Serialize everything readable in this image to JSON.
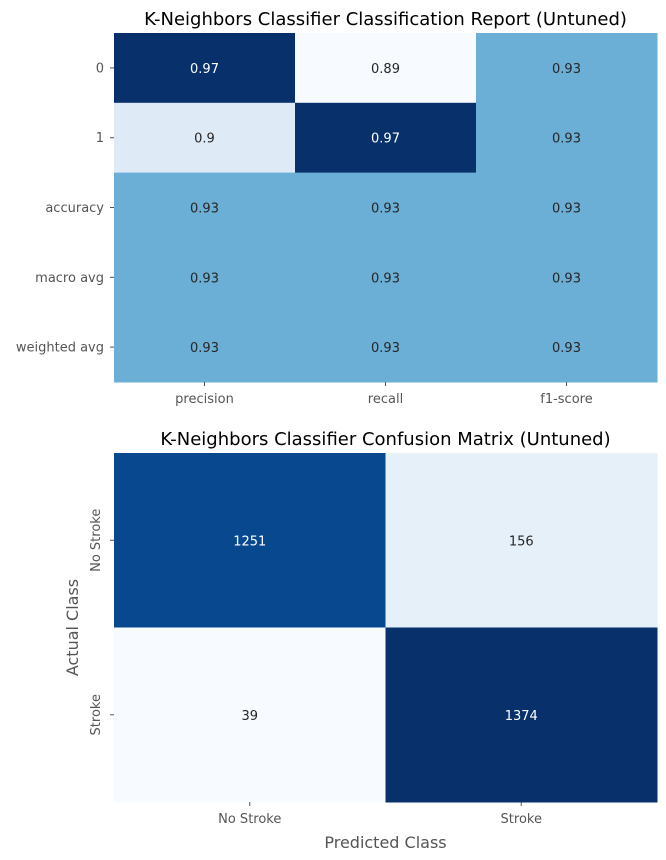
{
  "chart_data": [
    {
      "type": "heatmap",
      "title": "K-Neighbors Classifier Classification Report (Untuned)",
      "xlabel": "",
      "ylabel": "",
      "x_categories": [
        "precision",
        "recall",
        "f1-score"
      ],
      "y_categories": [
        "0",
        "1",
        "accuracy",
        "macro avg",
        "weighted avg"
      ],
      "values": [
        [
          0.97,
          0.89,
          0.93
        ],
        [
          0.9,
          0.97,
          0.93
        ],
        [
          0.93,
          0.93,
          0.93
        ],
        [
          0.93,
          0.93,
          0.93
        ],
        [
          0.93,
          0.93,
          0.93
        ]
      ],
      "cell_labels": [
        [
          "0.97",
          "0.89",
          "0.93"
        ],
        [
          "0.9",
          "0.97",
          "0.93"
        ],
        [
          "0.93",
          "0.93",
          "0.93"
        ],
        [
          "0.93",
          "0.93",
          "0.93"
        ],
        [
          "0.93",
          "0.93",
          "0.93"
        ]
      ],
      "colormap": "Blues",
      "colorbar": false
    },
    {
      "type": "heatmap",
      "title": "K-Neighbors Classifier Confusion Matrix (Untuned)",
      "xlabel": "Predicted Class",
      "ylabel": "Actual Class",
      "x_categories": [
        "No Stroke",
        "Stroke"
      ],
      "y_categories": [
        "No Stroke",
        "Stroke"
      ],
      "values": [
        [
          1251,
          156
        ],
        [
          39,
          1374
        ]
      ],
      "cell_labels": [
        [
          "1251",
          "156"
        ],
        [
          "39",
          "1374"
        ]
      ],
      "colormap": "Blues",
      "colorbar": false
    }
  ],
  "colors": {
    "blues_ramp": [
      "#f7fbff",
      "#deebf7",
      "#c6dbef",
      "#9ecae1",
      "#6baed6",
      "#4292c6",
      "#2171b5",
      "#08519c",
      "#08306b"
    ],
    "label_dark": "#262626",
    "label_light": "#ffffff"
  }
}
